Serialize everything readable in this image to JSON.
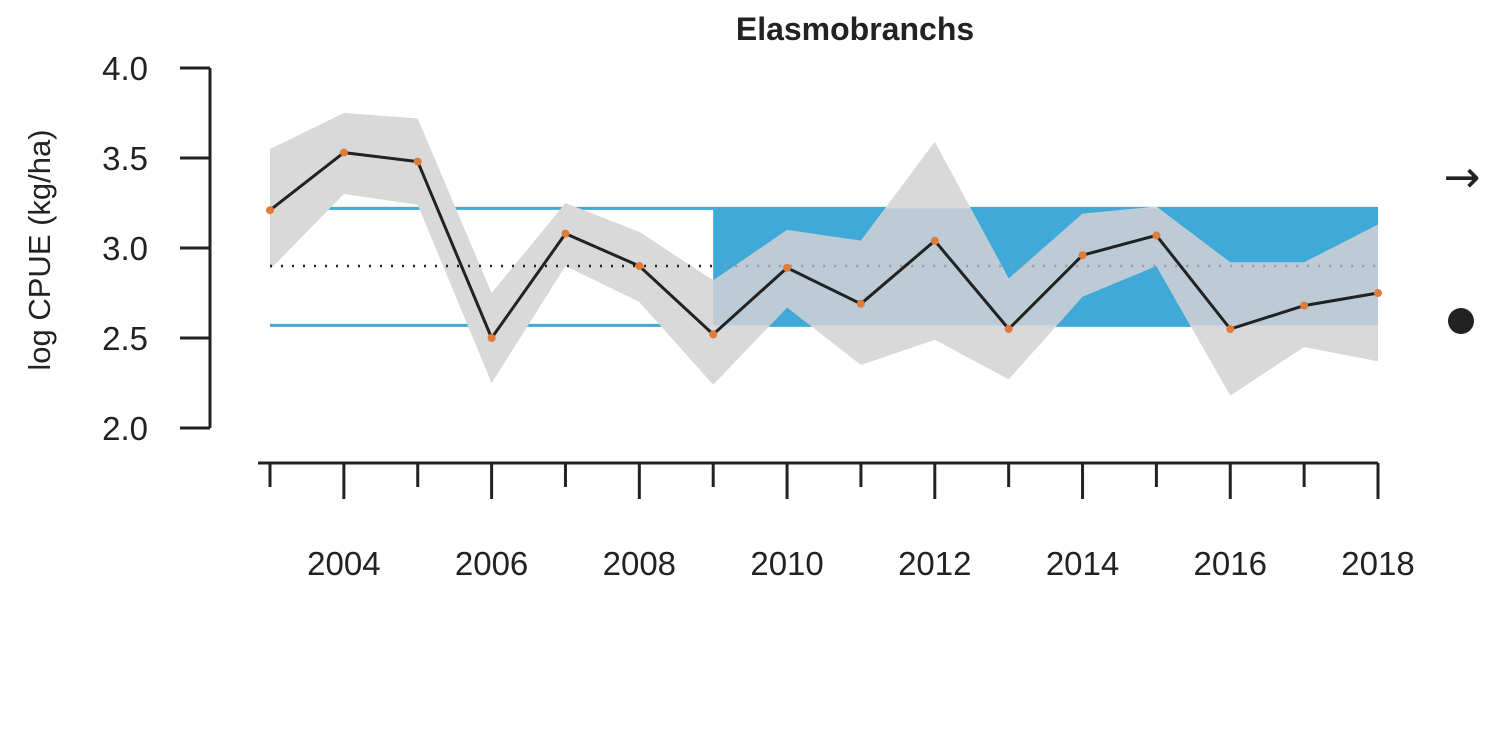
{
  "chart_data": {
    "type": "line",
    "title": "Elasmobranchs",
    "xlabel": "",
    "ylabel": "log CPUE (kg/ha)",
    "xlim": [
      2003,
      2018
    ],
    "ylim": [
      2.0,
      4.0
    ],
    "y_ticks": [
      "2.0",
      "2.5",
      "3.0",
      "3.5",
      "4.0"
    ],
    "x_ticks": [
      2003,
      2004,
      2005,
      2006,
      2007,
      2008,
      2009,
      2010,
      2011,
      2012,
      2013,
      2014,
      2015,
      2016,
      2017,
      2018
    ],
    "x_tick_labels": [
      "2004",
      "2006",
      "2008",
      "2010",
      "2012",
      "2014",
      "2016",
      "2018"
    ],
    "series": [
      {
        "x": [
          2003,
          2004,
          2005,
          2006,
          2007,
          2008,
          2009,
          2010,
          2011,
          2012,
          2013,
          2014,
          2015,
          2016,
          2017,
          2018
        ],
        "values": [
          3.21,
          3.53,
          3.48,
          2.5,
          3.08,
          2.9,
          2.52,
          2.89,
          2.69,
          3.04,
          2.55,
          2.96,
          3.07,
          2.55,
          2.68,
          2.75
        ],
        "lower": [
          2.88,
          3.3,
          3.24,
          2.25,
          2.9,
          2.7,
          2.24,
          2.67,
          2.35,
          2.49,
          2.27,
          2.73,
          2.9,
          2.18,
          2.45,
          2.37
        ],
        "upper": [
          3.55,
          3.75,
          3.72,
          2.75,
          3.25,
          3.09,
          2.82,
          3.1,
          3.04,
          3.59,
          2.83,
          3.19,
          3.23,
          2.92,
          2.92,
          3.13
        ]
      }
    ],
    "reference_lines": {
      "mean": 2.9,
      "upper": 3.22,
      "lower": 2.57
    },
    "highlight_period": [
      2009,
      2018
    ],
    "trend_symbol": "→",
    "status_symbol": "●",
    "colors": {
      "line": "#222222",
      "points": "#e07b39",
      "ci_band": "#d9d9d9",
      "reference": "#3fa9d8",
      "highlight": "#3fa9d8",
      "overlap": "#bccbd6",
      "mean_line_dark": "#222222",
      "mean_line_light": "#999999"
    }
  }
}
